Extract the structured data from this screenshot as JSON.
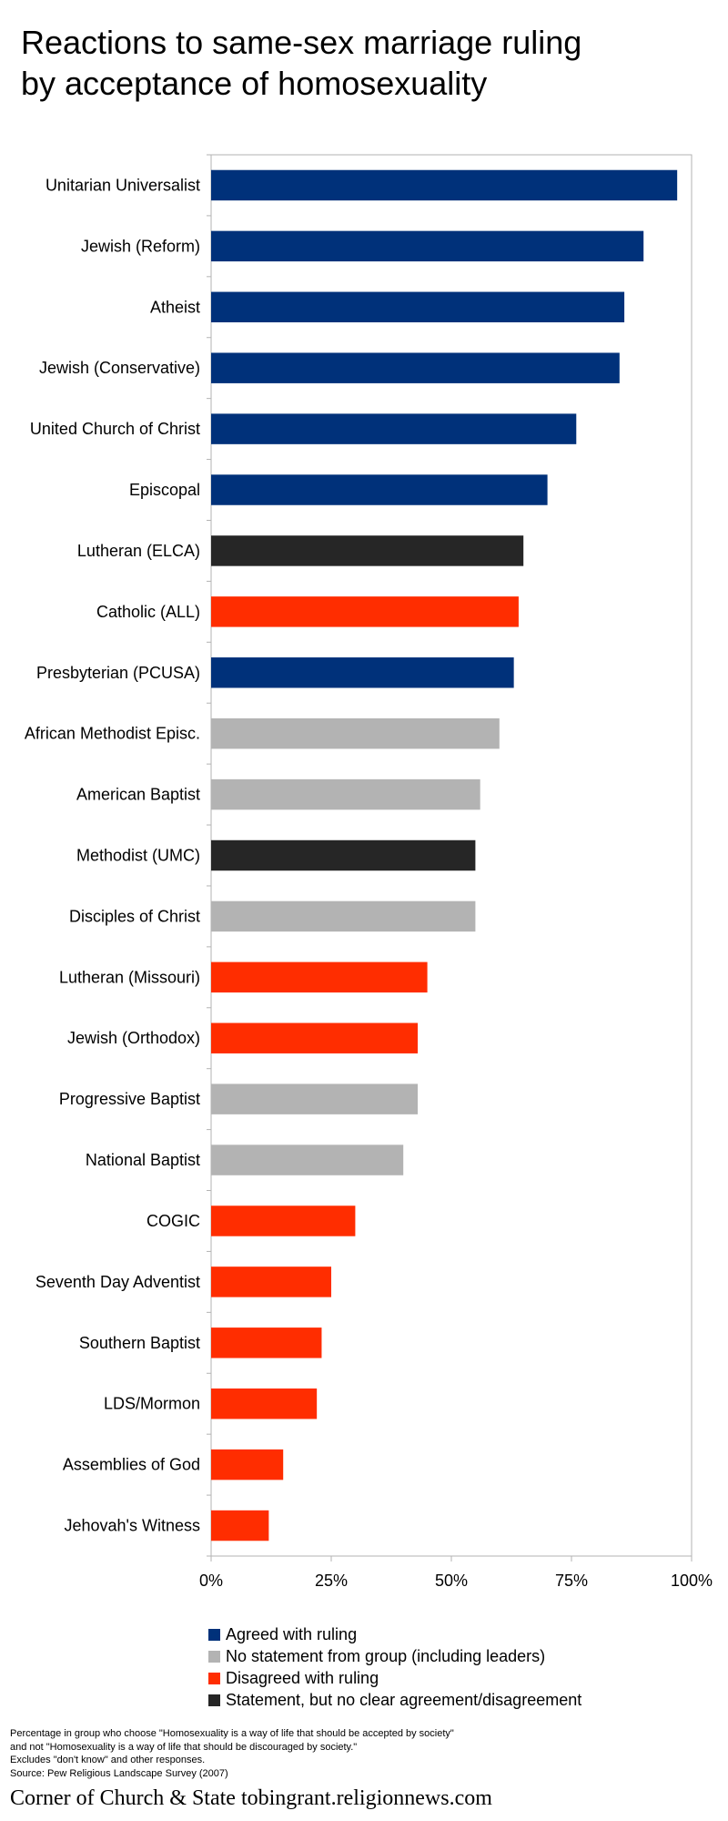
{
  "title": {
    "line1": "Reactions to same-sex marriage ruling",
    "line2": "by acceptance of homosexuality"
  },
  "colors": {
    "agreed": "#00317a",
    "no_statement": "#b3b3b3",
    "disagreed": "#ff2d00",
    "unclear": "#262626"
  },
  "chart_data": {
    "type": "bar",
    "orientation": "horizontal",
    "title": "Reactions to same-sex marriage ruling by acceptance of homosexuality",
    "xlim": [
      0,
      100
    ],
    "x_ticks": [
      "0%",
      "25%",
      "50%",
      "75%",
      "100%"
    ],
    "grid": false,
    "legend_position": "bottom",
    "categories": [
      "Unitarian Universalist",
      "Jewish (Reform)",
      "Atheist",
      "Jewish (Conservative)",
      "United Church of Christ",
      "Episcopal",
      "Lutheran (ELCA)",
      "Catholic (ALL)",
      "Presbyterian (PCUSA)",
      "African Methodist Episc.",
      "American Baptist",
      "Methodist (UMC)",
      "Disciples of Christ",
      "Lutheran (Missouri)",
      "Jewish (Orthodox)",
      "Progressive Baptist",
      "National Baptist",
      "COGIC",
      "Seventh Day Adventist",
      "Southern Baptist",
      "LDS/Mormon",
      "Assemblies of God",
      "Jehovah's Witness"
    ],
    "values": [
      97,
      90,
      86,
      85,
      76,
      70,
      65,
      64,
      63,
      60,
      56,
      55,
      55,
      45,
      43,
      43,
      40,
      30,
      25,
      23,
      22,
      15,
      12
    ],
    "groups": [
      "agreed",
      "agreed",
      "agreed",
      "agreed",
      "agreed",
      "agreed",
      "unclear",
      "disagreed",
      "agreed",
      "no_statement",
      "no_statement",
      "unclear",
      "no_statement",
      "disagreed",
      "disagreed",
      "no_statement",
      "no_statement",
      "disagreed",
      "disagreed",
      "disagreed",
      "disagreed",
      "disagreed",
      "disagreed"
    ],
    "legend": [
      {
        "key": "agreed",
        "label": "Agreed with ruling"
      },
      {
        "key": "no_statement",
        "label": "No statement from group (including leaders)"
      },
      {
        "key": "disagreed",
        "label": "Disagreed with ruling"
      },
      {
        "key": "unclear",
        "label": "Statement, but no clear agreement/disagreement"
      }
    ]
  },
  "footnote": {
    "line1": "Percentage in group who choose \"Homosexuality is a way of life that should be accepted by society\"",
    "line2": "and not \"Homosexuality is a way of life that should be discouraged by society.\"",
    "line3": "Excludes \"don't know\" and other responses.",
    "line4": "Source: Pew Religious Landscape Survey (2007)"
  },
  "credit": "Corner of Church & State tobingrant.religionnews.com"
}
